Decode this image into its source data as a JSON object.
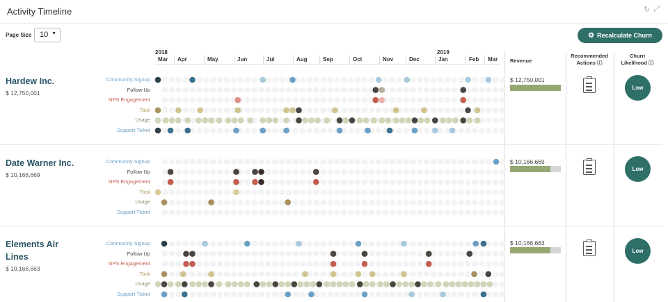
{
  "header": {
    "title": "Activity Timeline",
    "refresh_icon": "refresh-icon",
    "expand_icon": "expand-icon"
  },
  "controls": {
    "page_size_label": "Page Size",
    "page_size_value": "10",
    "recalc_label": "Recalculate Churn"
  },
  "timeline": {
    "years": [
      "2018",
      "2019"
    ],
    "months": [
      "Mar",
      "Apr",
      "May",
      "Jun",
      "Jul",
      "Aug",
      "Sep",
      "Oct",
      "Nov",
      "Dec",
      "Jan",
      "Feb",
      "Mar"
    ]
  },
  "columns": {
    "revenue": "Revenue",
    "recommended_line1": "Recommended",
    "recommended_line2": "Actions ⓘ",
    "churn_line1": "Churn",
    "churn_line2": "Likelihood ⓘ"
  },
  "categories": [
    {
      "label": "Community Signup",
      "color": "#6a9fc6"
    },
    {
      "label": "Follow Up",
      "color": "#444444"
    },
    {
      "label": "NPS Engagement",
      "color": "#c45d4e"
    },
    {
      "label": "Task",
      "color": "#b8a266"
    },
    {
      "label": "Usage",
      "color": "#8c8c6e"
    },
    {
      "label": "Support Ticket",
      "color": "#6a9fc6"
    }
  ],
  "colors": {
    "teal": "#2e6f68",
    "revenue_fill": "#95a873",
    "revenue_track": "#d6d6d6"
  },
  "accounts": [
    {
      "name": "Hardew Inc.",
      "revenue": "$ 12,750,001",
      "revenue_label": "$ 12,750,001",
      "revenue_fraction": 1.0,
      "churn": "Low",
      "events": [
        [
          [
            0,
            "#2f3f4a"
          ],
          [
            11,
            "#3a6f8f"
          ],
          [
            33.5,
            "#a7cbdc"
          ],
          [
            43,
            "#6a9fc6"
          ],
          [
            70.5,
            "#a7cbdc"
          ],
          [
            79.5,
            "#a7cbdc"
          ],
          [
            99,
            "#a7cbdc"
          ],
          [
            105.5,
            "#a7cbdc"
          ]
        ],
        [
          [
            69.5,
            "#4a4540"
          ],
          [
            71.5,
            "#b8b0a0"
          ],
          [
            97.5,
            "#4a4540"
          ]
        ],
        [
          [
            25.5,
            "#d99080"
          ],
          [
            69.5,
            "#c45d4e"
          ],
          [
            71.5,
            "#e8b0a8"
          ],
          [
            97.5,
            "#c45d4e"
          ]
        ],
        [
          [
            0,
            "#a89060"
          ],
          [
            6.5,
            "#cfc48e"
          ],
          [
            13.5,
            "#cfc48e"
          ],
          [
            25.5,
            "#cfc48e"
          ],
          [
            41,
            "#cfc48e"
          ],
          [
            43,
            "#cfc48e"
          ],
          [
            45,
            "#4a4540"
          ],
          [
            56.5,
            "#cfc48e"
          ],
          [
            76,
            "#cfc48e"
          ],
          [
            85,
            "#cfc48e"
          ],
          [
            99,
            "#4a4540"
          ],
          [
            102,
            "#cfc48e"
          ]
        ],
        [
          [
            0,
            "#cfd6b8"
          ],
          [
            2.5,
            "#cfd6b8"
          ],
          [
            4.5,
            "#cfd6b8"
          ],
          [
            6.5,
            "#cfd6b8"
          ],
          [
            9.5,
            "#cfd6b8"
          ],
          [
            13,
            "#cfd6b8"
          ],
          [
            15,
            "#cfd6b8"
          ],
          [
            17,
            "#cfd6b8"
          ],
          [
            19.5,
            "#cfd6b8"
          ],
          [
            22.5,
            "#cfd6b8"
          ],
          [
            24.5,
            "#cfd6b8"
          ],
          [
            26.5,
            "#cfd6b8"
          ],
          [
            29.5,
            "#cfd6b8"
          ],
          [
            33.5,
            "#cfd6b8"
          ],
          [
            35.5,
            "#cfd6b8"
          ],
          [
            37.5,
            "#cfd6b8"
          ],
          [
            41,
            "#cfd6b8"
          ],
          [
            45,
            "#4a4540"
          ],
          [
            47,
            "#cfd6b8"
          ],
          [
            49,
            "#cfd6b8"
          ],
          [
            51,
            "#cfd6b8"
          ],
          [
            54,
            "#cfd6b8"
          ],
          [
            58,
            "#4a4540"
          ],
          [
            60,
            "#cfd6b8"
          ],
          [
            62,
            "#4a4540"
          ],
          [
            64.5,
            "#cfd6b8"
          ],
          [
            66.5,
            "#cfd6b8"
          ],
          [
            69,
            "#cfd6b8"
          ],
          [
            71.5,
            "#cfd6b8"
          ],
          [
            73.5,
            "#cfd6b8"
          ],
          [
            76,
            "#cfd6b8"
          ],
          [
            78,
            "#cfd6b8"
          ],
          [
            80,
            "#cfd6b8"
          ],
          [
            82,
            "#4a4540"
          ],
          [
            84,
            "#cfd6b8"
          ],
          [
            86,
            "#cfd6b8"
          ],
          [
            88.5,
            "#4a4540"
          ],
          [
            91,
            "#cfd6b8"
          ],
          [
            93,
            "#cfd6b8"
          ],
          [
            95,
            "#cfd6b8"
          ],
          [
            97.5,
            "#4a4540"
          ],
          [
            99.5,
            "#cfd6b8"
          ],
          [
            102,
            "#cfd6b8"
          ]
        ],
        [
          [
            0,
            "#2f3f4a"
          ],
          [
            4,
            "#3a6f8f"
          ],
          [
            9.5,
            "#3a6f8f"
          ],
          [
            25,
            "#6a9fc6"
          ],
          [
            33.5,
            "#6a9fc6"
          ],
          [
            41,
            "#6a9fc6"
          ],
          [
            58,
            "#6a9fc6"
          ],
          [
            67,
            "#6a9fc6"
          ],
          [
            74,
            "#3a6f8f"
          ],
          [
            82,
            "#6a9fc6"
          ],
          [
            88.5,
            "#a7cbdc"
          ],
          [
            94,
            "#a7cbdc"
          ]
        ]
      ]
    },
    {
      "name": "Date Warner Inc.",
      "revenue": "$ 10,166,669",
      "revenue_label": "$ 10,166,669",
      "revenue_fraction": 0.8,
      "churn": "Low",
      "events": [
        [
          [
            108,
            "#6a9fc6"
          ]
        ],
        [
          [
            4,
            "#4a4540"
          ],
          [
            25,
            "#4a4540"
          ],
          [
            31,
            "#4a4540"
          ],
          [
            33,
            "#3a2f2a"
          ],
          [
            50.5,
            "#4a4540"
          ]
        ],
        [
          [
            4,
            "#c45d4e"
          ],
          [
            25,
            "#c45d4e"
          ],
          [
            31,
            "#c45d4e"
          ],
          [
            33,
            "#3a2f2a"
          ],
          [
            50.5,
            "#c45d4e"
          ]
        ],
        [
          [
            0,
            "#d9cc9a"
          ],
          [
            25,
            "#d9cc9a"
          ]
        ],
        [
          [
            2,
            "#a89060"
          ],
          [
            17,
            "#a89060"
          ],
          [
            41.5,
            "#a89060"
          ]
        ],
        []
      ]
    },
    {
      "name": "Elements Air Lines",
      "revenue": "$ 10,166,663",
      "revenue_label": "$ 10,166,663",
      "revenue_fraction": 0.8,
      "churn": "Low",
      "events": [
        [
          [
            2,
            "#2f3f4a"
          ],
          [
            15,
            "#a7cbdc"
          ],
          [
            28.5,
            "#6a9fc6"
          ],
          [
            45,
            "#a7cbdc"
          ],
          [
            64,
            "#6a9fc6"
          ],
          [
            78.5,
            "#a7cbdc"
          ],
          [
            101.5,
            "#6a9fc6"
          ],
          [
            104,
            "#3a6f8f"
          ]
        ],
        [
          [
            9,
            "#4a4540"
          ],
          [
            11,
            "#4a4540"
          ],
          [
            56,
            "#4a4540"
          ],
          [
            66,
            "#4a4540"
          ],
          [
            86.5,
            "#4a4540"
          ],
          [
            99.5,
            "#4a4540"
          ]
        ],
        [
          [
            9,
            "#c45d4e"
          ],
          [
            11,
            "#c45d4e"
          ],
          [
            56,
            "#c45d4e"
          ],
          [
            66,
            "#c45d4e"
          ],
          [
            86.5,
            "#c45d4e"
          ]
        ],
        [
          [
            2,
            "#a89060"
          ],
          [
            8,
            "#cfc48e"
          ],
          [
            17,
            "#cfc48e"
          ],
          [
            47,
            "#cfc48e"
          ],
          [
            56,
            "#cfc48e"
          ],
          [
            64,
            "#cfc48e"
          ],
          [
            68.5,
            "#cfc48e"
          ],
          [
            78.5,
            "#cfc48e"
          ],
          [
            101,
            "#a89060"
          ],
          [
            105.5,
            "#4a4540"
          ]
        ],
        [
          [
            0,
            "#cfd6b8"
          ],
          [
            2,
            "#4a4540"
          ],
          [
            4,
            "#cfd6b8"
          ],
          [
            6.5,
            "#cfd6b8"
          ],
          [
            8.5,
            "#4a4540"
          ],
          [
            11,
            "#cfd6b8"
          ],
          [
            13,
            "#cfd6b8"
          ],
          [
            15,
            "#cfd6b8"
          ],
          [
            17,
            "#4a4540"
          ],
          [
            19.5,
            "#cfd6b8"
          ],
          [
            22.5,
            "#cfd6b8"
          ],
          [
            24.5,
            "#cfd6b8"
          ],
          [
            26.5,
            "#cfd6b8"
          ],
          [
            28.5,
            "#cfd6b8"
          ],
          [
            31.5,
            "#4a4540"
          ],
          [
            33.5,
            "#cfd6b8"
          ],
          [
            35.5,
            "#cfd6b8"
          ],
          [
            37.5,
            "#4a4540"
          ],
          [
            39.5,
            "#cfd6b8"
          ],
          [
            41.5,
            "#cfd6b8"
          ],
          [
            43.5,
            "#4a4540"
          ],
          [
            45.5,
            "#cfd6b8"
          ],
          [
            47.5,
            "#cfd6b8"
          ],
          [
            49.5,
            "#cfd6b8"
          ],
          [
            51.5,
            "#4a4540"
          ],
          [
            54,
            "#cfd6b8"
          ],
          [
            56,
            "#cfd6b8"
          ],
          [
            58,
            "#cfd6b8"
          ],
          [
            60,
            "#cfd6b8"
          ],
          [
            62,
            "#cfd6b8"
          ],
          [
            64.5,
            "#4a4540"
          ],
          [
            66.5,
            "#cfd6b8"
          ],
          [
            68.5,
            "#cfd6b8"
          ],
          [
            71,
            "#cfd6b8"
          ],
          [
            73,
            "#cfd6b8"
          ],
          [
            75,
            "#4a4540"
          ],
          [
            77,
            "#cfd6b8"
          ],
          [
            79,
            "#cfd6b8"
          ],
          [
            81,
            "#cfd6b8"
          ],
          [
            83,
            "#4a4540"
          ],
          [
            85,
            "#cfd6b8"
          ],
          [
            87,
            "#cfd6b8"
          ],
          [
            89.5,
            "#cfd6b8"
          ],
          [
            92,
            "#cfd6b8"
          ],
          [
            94,
            "#cfd6b8"
          ],
          [
            96,
            "#cfd6b8"
          ],
          [
            98,
            "#cfd6b8"
          ],
          [
            100,
            "#cfd6b8"
          ],
          [
            102,
            "#cfd6b8"
          ],
          [
            104,
            "#cfd6b8"
          ],
          [
            106,
            "#cfd6b8"
          ]
        ],
        [
          [
            2,
            "#6a9fc6"
          ],
          [
            8.5,
            "#3a6f8f"
          ],
          [
            41.5,
            "#6a9fc6"
          ],
          [
            49,
            "#6a9fc6"
          ],
          [
            66,
            "#6a9fc6"
          ],
          [
            81,
            "#a7cbdc"
          ],
          [
            91,
            "#a7cbdc"
          ],
          [
            104,
            "#3a6f8f"
          ]
        ]
      ]
    }
  ]
}
